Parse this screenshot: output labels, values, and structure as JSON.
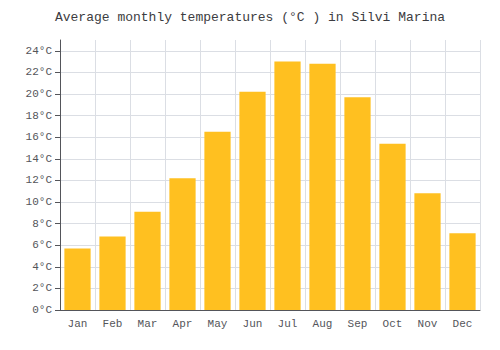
{
  "chart_data": {
    "type": "bar",
    "title": "Average monthly temperatures (°C ) in Silvi Marina",
    "categories": [
      "Jan",
      "Feb",
      "Mar",
      "Apr",
      "May",
      "Jun",
      "Jul",
      "Aug",
      "Sep",
      "Oct",
      "Nov",
      "Dec"
    ],
    "values": [
      5.7,
      6.8,
      9.1,
      12.2,
      16.5,
      20.2,
      23.0,
      22.8,
      19.7,
      15.4,
      10.8,
      7.1
    ],
    "color": "#FFC020",
    "ylim": [
      0,
      25
    ],
    "yticks": [
      {
        "value": 0,
        "label": "0°C"
      },
      {
        "value": 2,
        "label": "2°C"
      },
      {
        "value": 4,
        "label": "4°C"
      },
      {
        "value": 6,
        "label": "6°C"
      },
      {
        "value": 8,
        "label": "8°C"
      },
      {
        "value": 10,
        "label": "10°C"
      },
      {
        "value": 12,
        "label": "12°C"
      },
      {
        "value": 14,
        "label": "14°C"
      },
      {
        "value": 16,
        "label": "16°C"
      },
      {
        "value": 18,
        "label": "18°C"
      },
      {
        "value": 20,
        "label": "20°C"
      },
      {
        "value": 22,
        "label": "22°C"
      },
      {
        "value": 24,
        "label": "24°C"
      }
    ],
    "grid": true
  }
}
